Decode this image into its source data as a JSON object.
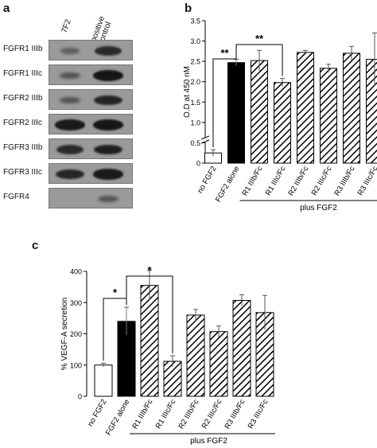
{
  "panels": {
    "a": "a",
    "b": "b",
    "c": "c"
  },
  "blot": {
    "lanes": [
      "7F2",
      "positive control"
    ],
    "rows": [
      {
        "label": "FGFR1 IIIb",
        "bands": [
          0.25,
          0.75
        ]
      },
      {
        "label": "FGFR1 IIIc",
        "bands": [
          0.35,
          0.95
        ]
      },
      {
        "label": "FGFR2 IIIb",
        "bands": [
          0.35,
          0.8
        ]
      },
      {
        "label": "FGFR2 IIIc",
        "bands": [
          0.9,
          0.95
        ]
      },
      {
        "label": "FGFR3 IIIb",
        "bands": [
          0.75,
          0.85
        ]
      },
      {
        "label": "FGFR3 IIIc",
        "bands": [
          0.8,
          0.9
        ]
      },
      {
        "label": "FGFR4",
        "bands": [
          0.0,
          0.35
        ]
      }
    ]
  },
  "chart_data": [
    {
      "type": "bar",
      "ylabel": "O.D at 450 nM",
      "ylim": [
        0,
        3.5
      ],
      "yticks": [
        "0",
        "0.5",
        "1.0",
        "1.5",
        "2.0",
        "2.5",
        "3.0",
        "3.5"
      ],
      "categories": [
        "no FGF2",
        "FGF2 alone",
        "R1 IIIb/Fc",
        "R1 IIIc/Fc",
        "R2 IIIb/Fc",
        "R2 IIIc/Fc",
        "R3 IIIb/Fc",
        "R3 IIIc/Fc"
      ],
      "values": [
        0.25,
        2.47,
        2.52,
        1.98,
        2.72,
        2.33,
        2.7,
        2.55
      ],
      "errors": [
        0.08,
        0.08,
        0.25,
        0.1,
        0.05,
        0.1,
        0.17,
        0.65
      ],
      "fills": [
        "white",
        "black",
        "hatch",
        "hatch",
        "hatch",
        "hatch",
        "hatch",
        "hatch"
      ],
      "axis_break": true,
      "significance": [
        {
          "from": 0,
          "to": 1,
          "label": "**"
        },
        {
          "from": 1,
          "to": 3,
          "label": "**"
        }
      ],
      "group_label": "plus FGF2"
    },
    {
      "type": "bar",
      "ylabel": "% VEGF-A secretion",
      "ylim": [
        0,
        400
      ],
      "yticks": [
        "0",
        "100",
        "200",
        "300",
        "400"
      ],
      "categories": [
        "no FGF2",
        "FGF2 alone",
        "R1 IIIb/Fc",
        "R1 IIIc/Fc",
        "R2 IIIb/Fc",
        "R2 IIIc/Fc",
        "R3 IIIb/Fc",
        "R3 IIIc/Fc"
      ],
      "values": [
        100,
        240,
        355,
        112,
        260,
        207,
        307,
        268
      ],
      "errors": [
        6,
        45,
        48,
        18,
        18,
        18,
        18,
        55
      ],
      "fills": [
        "white",
        "black",
        "hatch",
        "hatch",
        "hatch",
        "hatch",
        "hatch",
        "hatch"
      ],
      "significance": [
        {
          "from": 0,
          "to": 1,
          "label": "*"
        },
        {
          "from": 1,
          "to": 3,
          "label": "*"
        }
      ],
      "group_label": "plus FGF2"
    }
  ]
}
